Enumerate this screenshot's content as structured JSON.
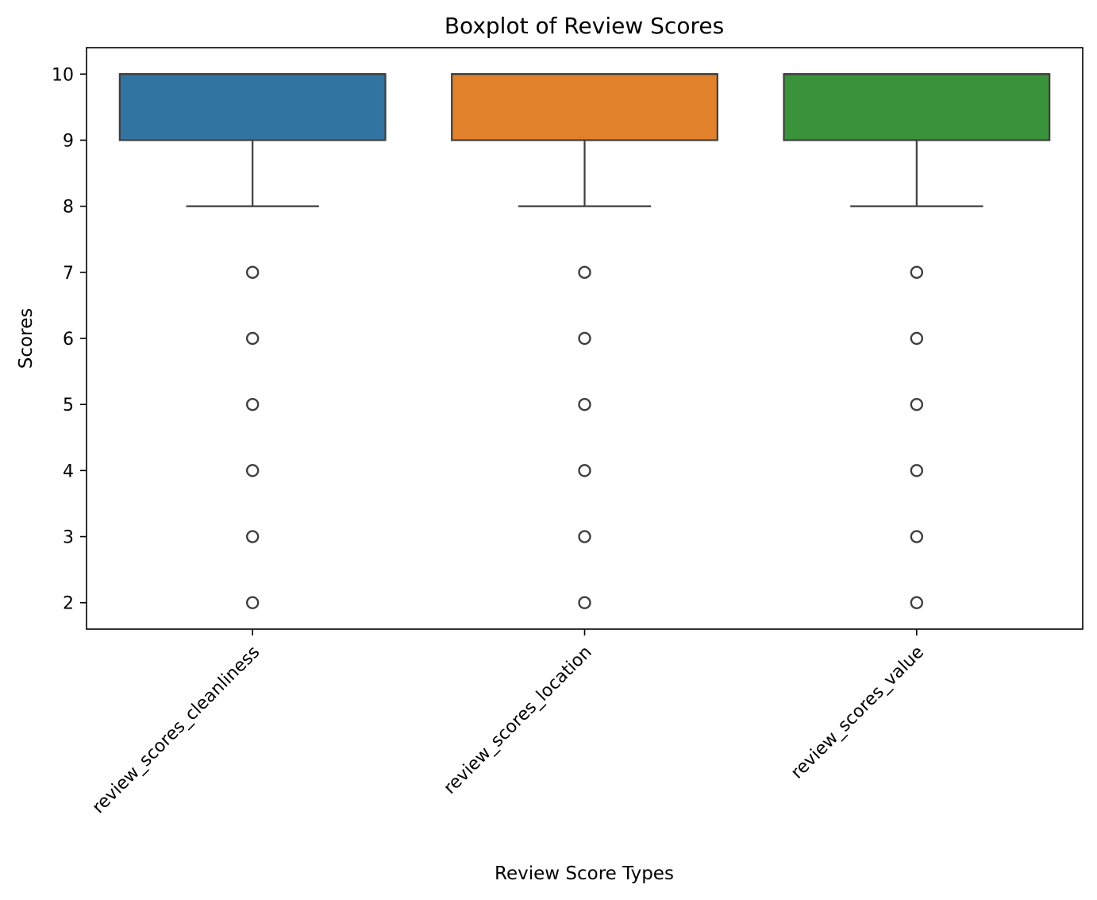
{
  "chart_data": {
    "type": "box",
    "title": "Boxplot of Review Scores",
    "xlabel": "Review Score Types",
    "ylabel": "Scores",
    "ylim": [
      1.6,
      10.4
    ],
    "yticks": [
      2,
      3,
      4,
      5,
      6,
      7,
      8,
      9,
      10
    ],
    "grid": false,
    "categories": [
      "review_scores_cleanliness",
      "review_scores_location",
      "review_scores_value"
    ],
    "series": [
      {
        "whisker_low": 8,
        "q1": 9,
        "median": 10,
        "q3": 10,
        "whisker_high": 10,
        "outliers": [
          2,
          3,
          4,
          5,
          6,
          7
        ],
        "color": "#3274a1"
      },
      {
        "whisker_low": 8,
        "q1": 9,
        "median": 10,
        "q3": 10,
        "whisker_high": 10,
        "outliers": [
          2,
          3,
          4,
          5,
          6,
          7
        ],
        "color": "#e1812c"
      },
      {
        "whisker_low": 8,
        "q1": 9,
        "median": 10,
        "q3": 10,
        "whisker_high": 10,
        "outliers": [
          2,
          3,
          4,
          5,
          6,
          7
        ],
        "color": "#3a923a"
      }
    ]
  }
}
